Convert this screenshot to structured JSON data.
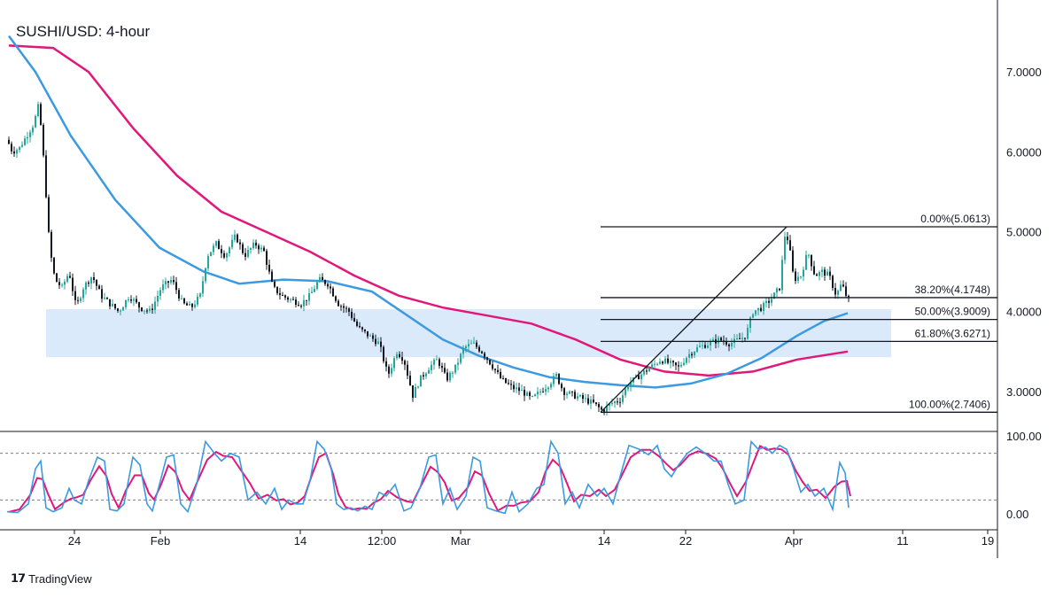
{
  "title": "SUSHI/USD: 4-hour",
  "branding": {
    "logo_icon": "tradingview-icon",
    "text": "TradingView"
  },
  "colors": {
    "candle_up": "#26a69a",
    "candle_down": "#131722",
    "ma_fast": "#3b9ae1",
    "ma_slow": "#e0187c",
    "zone": "#dbeafb",
    "stoch_k": "#3b9ae1",
    "stoch_d": "#e0187c"
  },
  "chart_data": [
    {
      "type": "candlestick",
      "title": "SUSHI/USD: 4-hour",
      "x_tick_labels": [
        "24",
        "Feb",
        "14",
        "12:00",
        "Mar",
        "14",
        "22",
        "Apr",
        "11",
        "19"
      ],
      "y_tick_labels": [
        "7.0000",
        "6.0000",
        "5.0000",
        "4.0000",
        "3.0000"
      ],
      "ylim": [
        2.5,
        7.9
      ],
      "grid": false,
      "price_path": [
        [
          0,
          6.55
        ],
        [
          6,
          6.2
        ],
        [
          14,
          6.0
        ],
        [
          22,
          6.05
        ],
        [
          30,
          6.2
        ],
        [
          38,
          6.35
        ],
        [
          44,
          6.6
        ],
        [
          50,
          5.8
        ],
        [
          56,
          4.8
        ],
        [
          62,
          4.4
        ],
        [
          70,
          4.3
        ],
        [
          78,
          4.5
        ],
        [
          86,
          4.05
        ],
        [
          94,
          4.3
        ],
        [
          104,
          4.45
        ],
        [
          114,
          4.2
        ],
        [
          124,
          4.1
        ],
        [
          134,
          4.0
        ],
        [
          146,
          4.2
        ],
        [
          158,
          4.05
        ],
        [
          170,
          4.0
        ],
        [
          182,
          4.3
        ],
        [
          194,
          4.4
        ],
        [
          206,
          4.1
        ],
        [
          216,
          4.05
        ],
        [
          226,
          4.2
        ],
        [
          234,
          4.7
        ],
        [
          244,
          4.85
        ],
        [
          254,
          4.7
        ],
        [
          266,
          4.95
        ],
        [
          276,
          4.7
        ],
        [
          288,
          4.85
        ],
        [
          298,
          4.75
        ],
        [
          308,
          4.3
        ],
        [
          318,
          4.2
        ],
        [
          328,
          4.15
        ],
        [
          340,
          4.1
        ],
        [
          350,
          4.2
        ],
        [
          360,
          4.4
        ],
        [
          370,
          4.35
        ],
        [
          382,
          4.1
        ],
        [
          394,
          4.0
        ],
        [
          404,
          3.8
        ],
        [
          416,
          3.7
        ],
        [
          428,
          3.6
        ],
        [
          438,
          3.2
        ],
        [
          448,
          3.5
        ],
        [
          456,
          3.4
        ],
        [
          466,
          2.95
        ],
        [
          474,
          3.15
        ],
        [
          484,
          3.3
        ],
        [
          494,
          3.4
        ],
        [
          504,
          3.15
        ],
        [
          514,
          3.3
        ],
        [
          524,
          3.55
        ],
        [
          534,
          3.6
        ],
        [
          544,
          3.5
        ],
        [
          554,
          3.35
        ],
        [
          566,
          3.15
        ],
        [
          578,
          3.05
        ],
        [
          590,
          3.0
        ],
        [
          600,
          2.9
        ],
        [
          610,
          3.0
        ],
        [
          620,
          3.1
        ],
        [
          628,
          3.2
        ],
        [
          636,
          3.0
        ],
        [
          648,
          2.95
        ],
        [
          660,
          2.9
        ],
        [
          670,
          2.85
        ],
        [
          680,
          2.76
        ],
        [
          690,
          2.85
        ],
        [
          700,
          2.9
        ],
        [
          710,
          3.1
        ],
        [
          722,
          3.2
        ],
        [
          734,
          3.3
        ],
        [
          746,
          3.4
        ],
        [
          756,
          3.35
        ],
        [
          766,
          3.3
        ],
        [
          776,
          3.45
        ],
        [
          788,
          3.55
        ],
        [
          800,
          3.6
        ],
        [
          812,
          3.65
        ],
        [
          824,
          3.6
        ],
        [
          834,
          3.65
        ],
        [
          842,
          3.7
        ],
        [
          850,
          4.0
        ],
        [
          860,
          4.05
        ],
        [
          870,
          4.15
        ],
        [
          880,
          4.3
        ],
        [
          886,
          4.95
        ],
        [
          890,
          4.9
        ],
        [
          896,
          4.4
        ],
        [
          904,
          4.45
        ],
        [
          912,
          4.75
        ],
        [
          920,
          4.45
        ],
        [
          928,
          4.5
        ],
        [
          936,
          4.45
        ],
        [
          944,
          4.2
        ],
        [
          950,
          4.35
        ],
        [
          957,
          4.15
        ]
      ],
      "moving_average_fast": [
        [
          10,
          7.45
        ],
        [
          40,
          7.0
        ],
        [
          80,
          6.2
        ],
        [
          130,
          5.4
        ],
        [
          180,
          4.8
        ],
        [
          230,
          4.5
        ],
        [
          270,
          4.35
        ],
        [
          320,
          4.4
        ],
        [
          370,
          4.38
        ],
        [
          420,
          4.25
        ],
        [
          460,
          3.95
        ],
        [
          500,
          3.65
        ],
        [
          540,
          3.45
        ],
        [
          580,
          3.3
        ],
        [
          620,
          3.18
        ],
        [
          660,
          3.12
        ],
        [
          700,
          3.08
        ],
        [
          740,
          3.05
        ],
        [
          780,
          3.1
        ],
        [
          820,
          3.22
        ],
        [
          860,
          3.42
        ],
        [
          900,
          3.7
        ],
        [
          930,
          3.88
        ],
        [
          957,
          3.98
        ]
      ],
      "moving_average_slow": [
        [
          10,
          7.33
        ],
        [
          60,
          7.3
        ],
        [
          100,
          7.0
        ],
        [
          150,
          6.3
        ],
        [
          200,
          5.7
        ],
        [
          250,
          5.25
        ],
        [
          300,
          5.0
        ],
        [
          350,
          4.75
        ],
        [
          400,
          4.45
        ],
        [
          450,
          4.2
        ],
        [
          500,
          4.05
        ],
        [
          550,
          3.95
        ],
        [
          600,
          3.85
        ],
        [
          650,
          3.65
        ],
        [
          700,
          3.4
        ],
        [
          750,
          3.25
        ],
        [
          800,
          3.2
        ],
        [
          850,
          3.25
        ],
        [
          900,
          3.4
        ],
        [
          957,
          3.5
        ]
      ],
      "support_zone": {
        "top": 4.03,
        "bottom": 3.43
      },
      "fibonacci": {
        "swing_low": 2.7406,
        "swing_high": 5.0613,
        "levels": [
          {
            "label": "0.00%(5.0613)",
            "price": 5.0613
          },
          {
            "label": "38.20%(4.1748)",
            "price": 4.1748
          },
          {
            "label": "50.00%(3.9009)",
            "price": 3.9009
          },
          {
            "label": "61.80%(3.6271)",
            "price": 3.6271
          },
          {
            "label": "100.00%(2.7406)",
            "price": 2.7406
          }
        ]
      }
    },
    {
      "type": "line",
      "title": "",
      "y_tick_labels": [
        "100.00",
        "0.00"
      ],
      "ylim": [
        0,
        100
      ],
      "reference_lines": [
        80,
        20
      ],
      "series": [
        {
          "name": "",
          "values": [
            [
              8,
              5
            ],
            [
              20,
              4
            ],
            [
              32,
              15
            ],
            [
              40,
              60
            ],
            [
              46,
              70
            ],
            [
              52,
              10
            ],
            [
              60,
              5
            ],
            [
              70,
              10
            ],
            [
              78,
              35
            ],
            [
              84,
              20
            ],
            [
              92,
              15
            ],
            [
              100,
              45
            ],
            [
              110,
              75
            ],
            [
              118,
              70
            ],
            [
              124,
              8
            ],
            [
              132,
              6
            ],
            [
              140,
              15
            ],
            [
              150,
              75
            ],
            [
              158,
              65
            ],
            [
              166,
              15
            ],
            [
              172,
              6
            ],
            [
              180,
              40
            ],
            [
              188,
              75
            ],
            [
              196,
              78
            ],
            [
              204,
              15
            ],
            [
              212,
              5
            ],
            [
              222,
              40
            ],
            [
              232,
              95
            ],
            [
              242,
              80
            ],
            [
              250,
              70
            ],
            [
              260,
              80
            ],
            [
              270,
              75
            ],
            [
              280,
              20
            ],
            [
              290,
              30
            ],
            [
              300,
              15
            ],
            [
              310,
              35
            ],
            [
              318,
              8
            ],
            [
              326,
              20
            ],
            [
              334,
              15
            ],
            [
              342,
              15
            ],
            [
              350,
              45
            ],
            [
              358,
              95
            ],
            [
              366,
              85
            ],
            [
              374,
              60
            ],
            [
              380,
              15
            ],
            [
              388,
              8
            ],
            [
              396,
              10
            ],
            [
              404,
              6
            ],
            [
              412,
              12
            ],
            [
              420,
              8
            ],
            [
              428,
              30
            ],
            [
              436,
              25
            ],
            [
              446,
              40
            ],
            [
              456,
              6
            ],
            [
              464,
              10
            ],
            [
              474,
              35
            ],
            [
              484,
              75
            ],
            [
              492,
              78
            ],
            [
              500,
              15
            ],
            [
              508,
              35
            ],
            [
              516,
              8
            ],
            [
              526,
              25
            ],
            [
              534,
              75
            ],
            [
              542,
              70
            ],
            [
              550,
              10
            ],
            [
              560,
              6
            ],
            [
              570,
              3
            ],
            [
              578,
              30
            ],
            [
              586,
              5
            ],
            [
              596,
              15
            ],
            [
              606,
              35
            ],
            [
              614,
              40
            ],
            [
              622,
              95
            ],
            [
              630,
              80
            ],
            [
              638,
              15
            ],
            [
              646,
              30
            ],
            [
              654,
              10
            ],
            [
              664,
              40
            ],
            [
              674,
              25
            ],
            [
              682,
              35
            ],
            [
              692,
              15
            ],
            [
              700,
              50
            ],
            [
              710,
              90
            ],
            [
              722,
              85
            ],
            [
              732,
              78
            ],
            [
              742,
              90
            ],
            [
              750,
              60
            ],
            [
              758,
              50
            ],
            [
              766,
              65
            ],
            [
              776,
              80
            ],
            [
              786,
              88
            ],
            [
              796,
              80
            ],
            [
              806,
              70
            ],
            [
              814,
              70
            ],
            [
              822,
              40
            ],
            [
              830,
              15
            ],
            [
              840,
              20
            ],
            [
              848,
              95
            ],
            [
              856,
              85
            ],
            [
              864,
              88
            ],
            [
              872,
              80
            ],
            [
              880,
              90
            ],
            [
              888,
              85
            ],
            [
              896,
              60
            ],
            [
              904,
              30
            ],
            [
              912,
              40
            ],
            [
              920,
              25
            ],
            [
              930,
              35
            ],
            [
              940,
              8
            ],
            [
              948,
              68
            ],
            [
              954,
              55
            ],
            [
              958,
              10
            ]
          ]
        }
      ]
    }
  ]
}
